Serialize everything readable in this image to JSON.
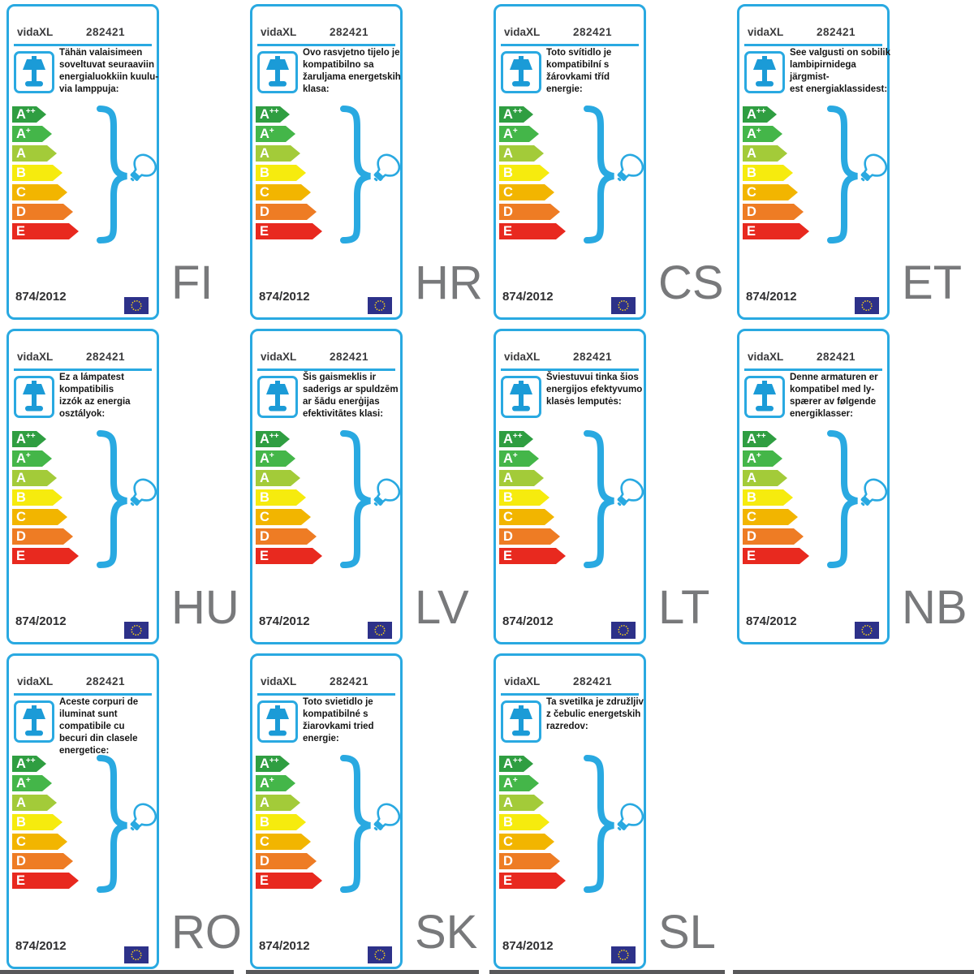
{
  "product": {
    "brand": "vidaXL",
    "model": "282421",
    "regulation": "874/2012"
  },
  "colors": {
    "accent_blue": "#29a9e1",
    "lamp_icon_blue": "#1b9bd7",
    "text_dark": "#2e2e30",
    "language_code_gray": "#78797b",
    "eu_flag_blue": "#2d3189",
    "eu_star_yellow": "#f7d117",
    "cutoff_edge_gray": "#58585a"
  },
  "energy_classes": [
    {
      "label": "A",
      "sup": "++",
      "color": "#2f9e41",
      "body_width": 30
    },
    {
      "label": "A",
      "sup": "+",
      "color": "#44b649",
      "body_width": 37
    },
    {
      "label": "A",
      "sup": "",
      "color": "#a3cb39",
      "body_width": 43
    },
    {
      "label": "B",
      "sup": "",
      "color": "#f6eb0e",
      "body_width": 50
    },
    {
      "label": "C",
      "sup": "",
      "color": "#f2b500",
      "body_width": 56
    },
    {
      "label": "D",
      "sup": "",
      "color": "#ee7c24",
      "body_width": 63
    },
    {
      "label": "E",
      "sup": "",
      "color": "#e8291f",
      "body_width": 70
    }
  ],
  "labels": [
    {
      "code": "FI",
      "description": "Tähän valaisimeen\nsoveltuvat seuraaviin\nenergialuokkiin kuulu-\nvia lamppuja:"
    },
    {
      "code": "HR",
      "description": "Ovo rasvjetno tijelo je\nkompatibilno sa\nžaruljama energetskih\nklasa:"
    },
    {
      "code": "CS",
      "description": "Toto svítidlo je\nkompatibilní s\nžárovkami tříd\nenergie:"
    },
    {
      "code": "ET",
      "description": "See valgusti on sobilik\nlambipirnidega järgmist-\nest energiaklassidest:"
    },
    {
      "code": "HU",
      "description": "Ez a lámpatest\nkompatibilis\nizzók az energia\nosztályok:"
    },
    {
      "code": "LV",
      "description": "Šis gaismeklis ir\nsaderigs ar spuldzēm\nar šādu enerģijas\nefektivitātes klasi:"
    },
    {
      "code": "LT",
      "description": "Šviestuvui tinka šios\nenergijos efektyvumo\nklasės lemputės:"
    },
    {
      "code": "NB",
      "description": "Denne armaturen er\nkompatibel med ly-\nspærer av følgende\nenergiklasser:"
    },
    {
      "code": "RO",
      "description": "Aceste corpuri de\niluminat sunt\ncompatibile cu\nbecuri din clasele\nenergetice:"
    },
    {
      "code": "SK",
      "description": "Toto svietidlo je\nkompatibilné s\nžiarovkami tried\nenergie:"
    },
    {
      "code": "SL",
      "description": "Ta svetilka je združljiv\nz čebulic energetskih\nrazredov:"
    }
  ]
}
